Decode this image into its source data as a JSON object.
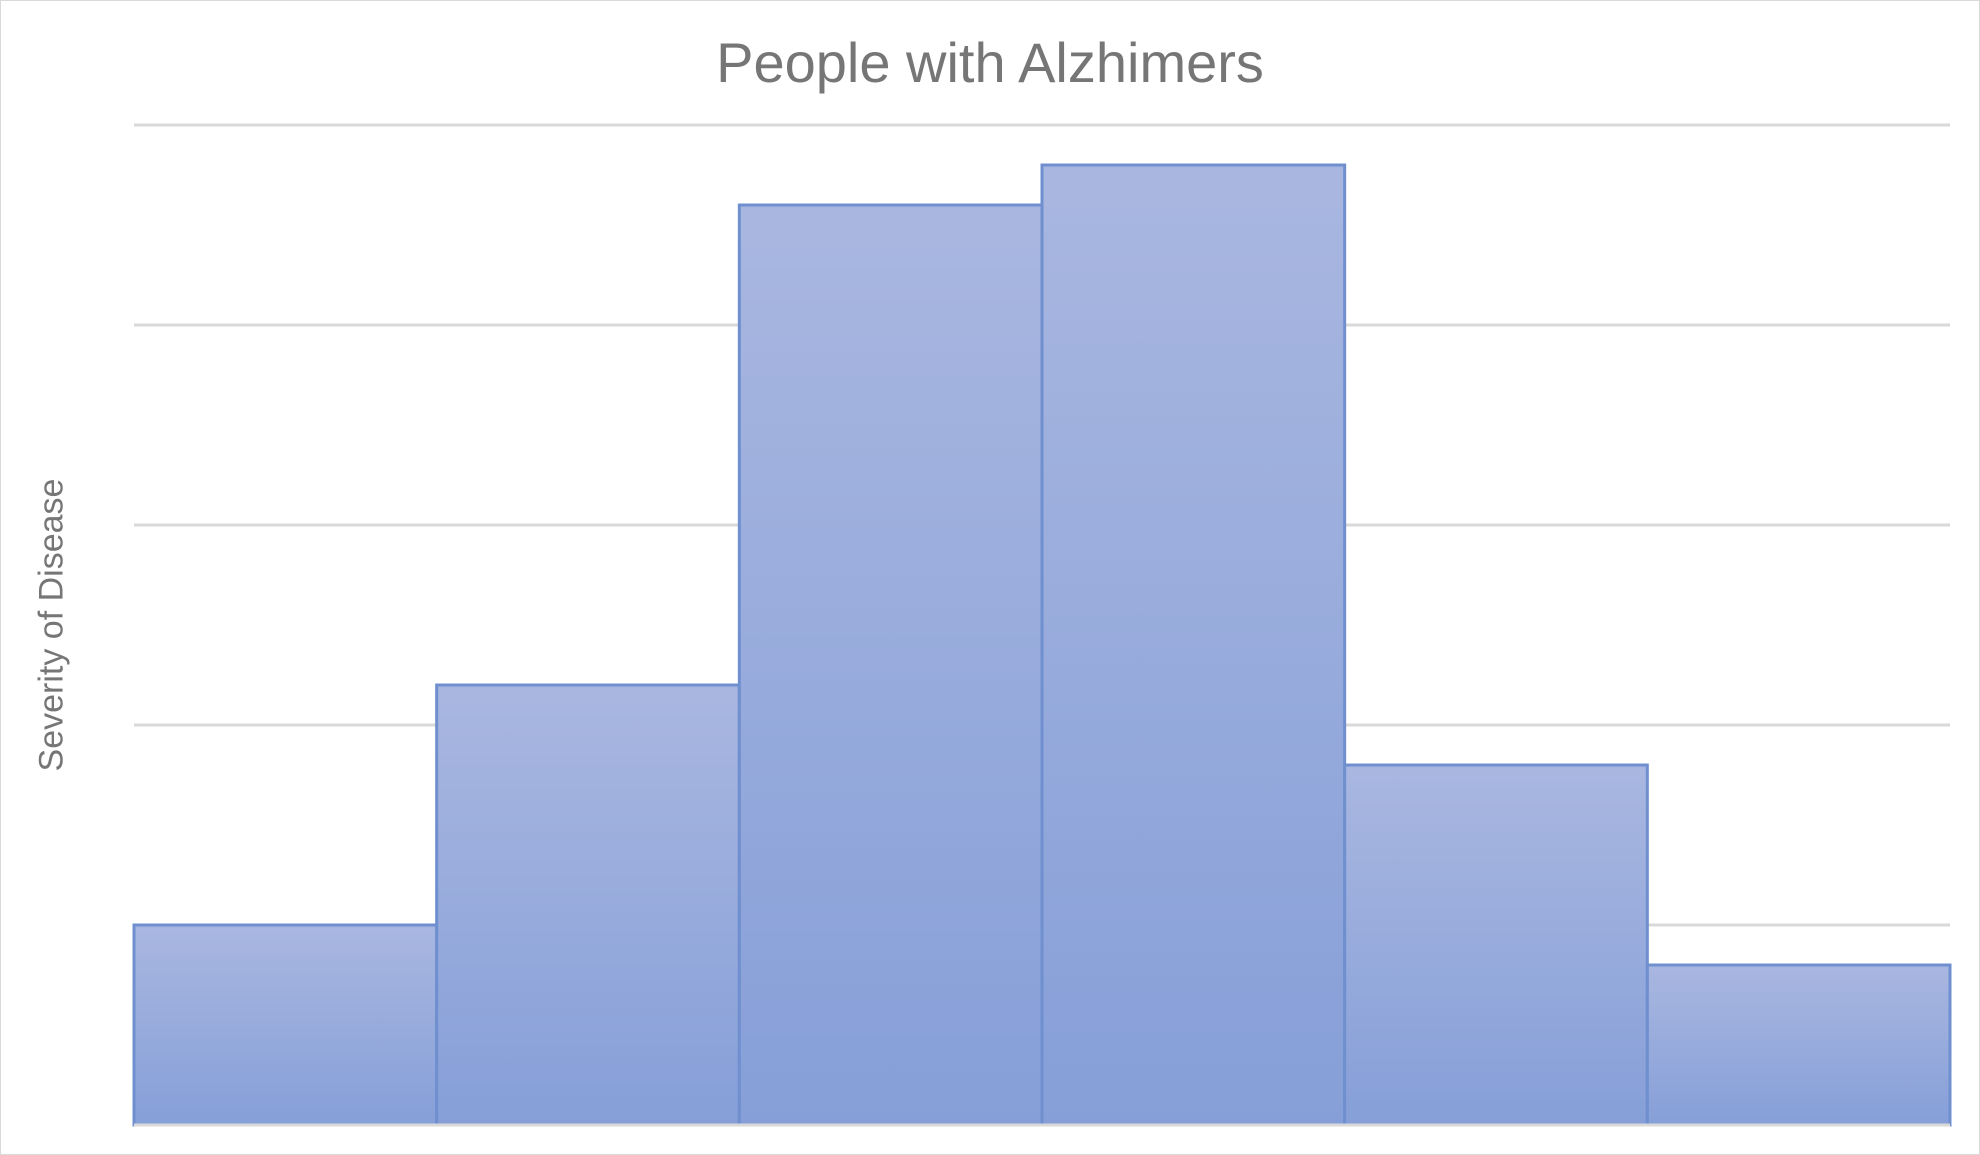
{
  "chart_data": {
    "type": "bar",
    "title": "People with Alzhimers",
    "xlabel": "",
    "ylabel": "Severity of Disease",
    "categories": [
      "",
      "",
      "",
      "",
      "",
      ""
    ],
    "values": [
      1.0,
      2.2,
      4.6,
      4.8,
      1.8,
      0.8
    ],
    "ylim": [
      0,
      5
    ],
    "grid": true,
    "colors": {
      "bar_top": "#a9b7e0",
      "bar_bottom": "#869fd8",
      "bar_edge": "#6f8fcf",
      "grid": "#d9d9d9",
      "text": "#767676"
    }
  }
}
